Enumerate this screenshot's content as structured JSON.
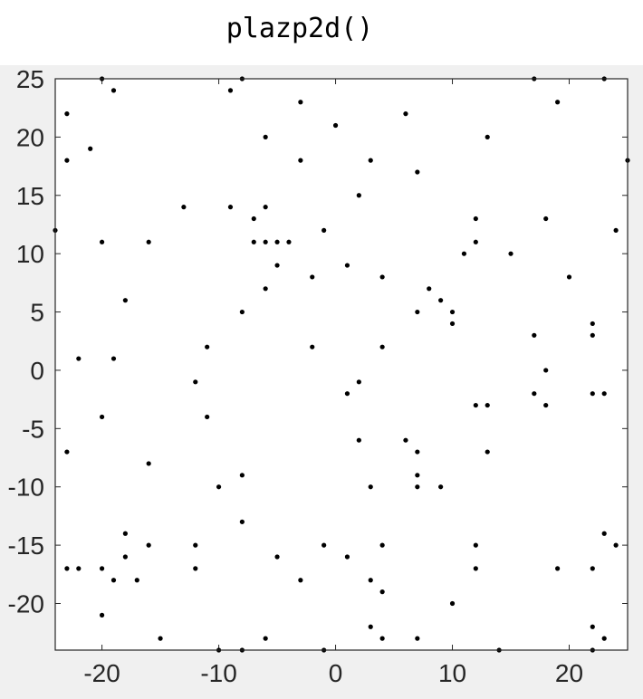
{
  "title": "plazp2d()",
  "chart_data": {
    "type": "scatter",
    "title": "",
    "xlabel": "",
    "ylabel": "",
    "xlim": [
      -24,
      25
    ],
    "ylim": [
      -24,
      25
    ],
    "xticks": [
      -20,
      -10,
      0,
      10,
      20
    ],
    "yticks": [
      25,
      20,
      15,
      10,
      5,
      0,
      -5,
      -10,
      -15,
      -20
    ],
    "xtick_labels": [
      "-20",
      "-10",
      "0",
      "10",
      "20"
    ],
    "ytick_labels": [
      "25",
      "20",
      "15",
      "10",
      "5",
      "0",
      "-5",
      "-10",
      "-15",
      "-20"
    ],
    "grid": false,
    "marker_color": "#000000",
    "axes_background": "#ffffff",
    "figure_background": "#f0f0f0",
    "points": [
      [
        -20,
        25
      ],
      [
        -8,
        25
      ],
      [
        17,
        25
      ],
      [
        23,
        25
      ],
      [
        -19,
        24
      ],
      [
        -9,
        24
      ],
      [
        -3,
        23
      ],
      [
        19,
        23
      ],
      [
        -23,
        22
      ],
      [
        6,
        22
      ],
      [
        0,
        21
      ],
      [
        -6,
        20
      ],
      [
        13,
        20
      ],
      [
        -21,
        19
      ],
      [
        -23,
        18
      ],
      [
        -3,
        18
      ],
      [
        3,
        18
      ],
      [
        25,
        18
      ],
      [
        7,
        17
      ],
      [
        2,
        15
      ],
      [
        -13,
        14
      ],
      [
        -9,
        14
      ],
      [
        -6,
        14
      ],
      [
        -7,
        13
      ],
      [
        12,
        13
      ],
      [
        18,
        13
      ],
      [
        -24,
        12
      ],
      [
        -1,
        12
      ],
      [
        24,
        12
      ],
      [
        -20,
        11
      ],
      [
        -16,
        11
      ],
      [
        -7,
        11
      ],
      [
        -6,
        11
      ],
      [
        -5,
        11
      ],
      [
        -4,
        11
      ],
      [
        12,
        11
      ],
      [
        11,
        10
      ],
      [
        15,
        10
      ],
      [
        -5,
        9
      ],
      [
        1,
        9
      ],
      [
        -2,
        8
      ],
      [
        4,
        8
      ],
      [
        20,
        8
      ],
      [
        -6,
        7
      ],
      [
        8,
        7
      ],
      [
        -18,
        6
      ],
      [
        9,
        6
      ],
      [
        -8,
        5
      ],
      [
        7,
        5
      ],
      [
        10,
        5
      ],
      [
        10,
        4
      ],
      [
        22,
        4
      ],
      [
        17,
        3
      ],
      [
        22,
        3
      ],
      [
        -11,
        2
      ],
      [
        -2,
        2
      ],
      [
        4,
        2
      ],
      [
        -22,
        1
      ],
      [
        -19,
        1
      ],
      [
        18,
        0
      ],
      [
        -12,
        -1
      ],
      [
        2,
        -1
      ],
      [
        1,
        -2
      ],
      [
        17,
        -2
      ],
      [
        22,
        -2
      ],
      [
        23,
        -2
      ],
      [
        12,
        -3
      ],
      [
        13,
        -3
      ],
      [
        18,
        -3
      ],
      [
        -20,
        -4
      ],
      [
        -11,
        -4
      ],
      [
        2,
        -6
      ],
      [
        6,
        -6
      ],
      [
        -23,
        -7
      ],
      [
        7,
        -7
      ],
      [
        13,
        -7
      ],
      [
        -16,
        -8
      ],
      [
        -8,
        -9
      ],
      [
        7,
        -9
      ],
      [
        -10,
        -10
      ],
      [
        3,
        -10
      ],
      [
        7,
        -10
      ],
      [
        9,
        -10
      ],
      [
        -8,
        -13
      ],
      [
        -18,
        -14
      ],
      [
        23,
        -14
      ],
      [
        -16,
        -15
      ],
      [
        -12,
        -15
      ],
      [
        -1,
        -15
      ],
      [
        4,
        -15
      ],
      [
        12,
        -15
      ],
      [
        24,
        -15
      ],
      [
        -18,
        -16
      ],
      [
        -5,
        -16
      ],
      [
        1,
        -16
      ],
      [
        -23,
        -17
      ],
      [
        -22,
        -17
      ],
      [
        -20,
        -17
      ],
      [
        -12,
        -17
      ],
      [
        12,
        -17
      ],
      [
        19,
        -17
      ],
      [
        22,
        -17
      ],
      [
        -19,
        -18
      ],
      [
        -17,
        -18
      ],
      [
        -3,
        -18
      ],
      [
        3,
        -18
      ],
      [
        4,
        -19
      ],
      [
        10,
        -20
      ],
      [
        -20,
        -21
      ],
      [
        3,
        -22
      ],
      [
        22,
        -22
      ],
      [
        -15,
        -23
      ],
      [
        -6,
        -23
      ],
      [
        4,
        -23
      ],
      [
        7,
        -23
      ],
      [
        23,
        -23
      ],
      [
        -10,
        -24
      ],
      [
        -8,
        -24
      ],
      [
        -1,
        -24
      ],
      [
        14,
        -24
      ],
      [
        22,
        -24
      ]
    ]
  }
}
